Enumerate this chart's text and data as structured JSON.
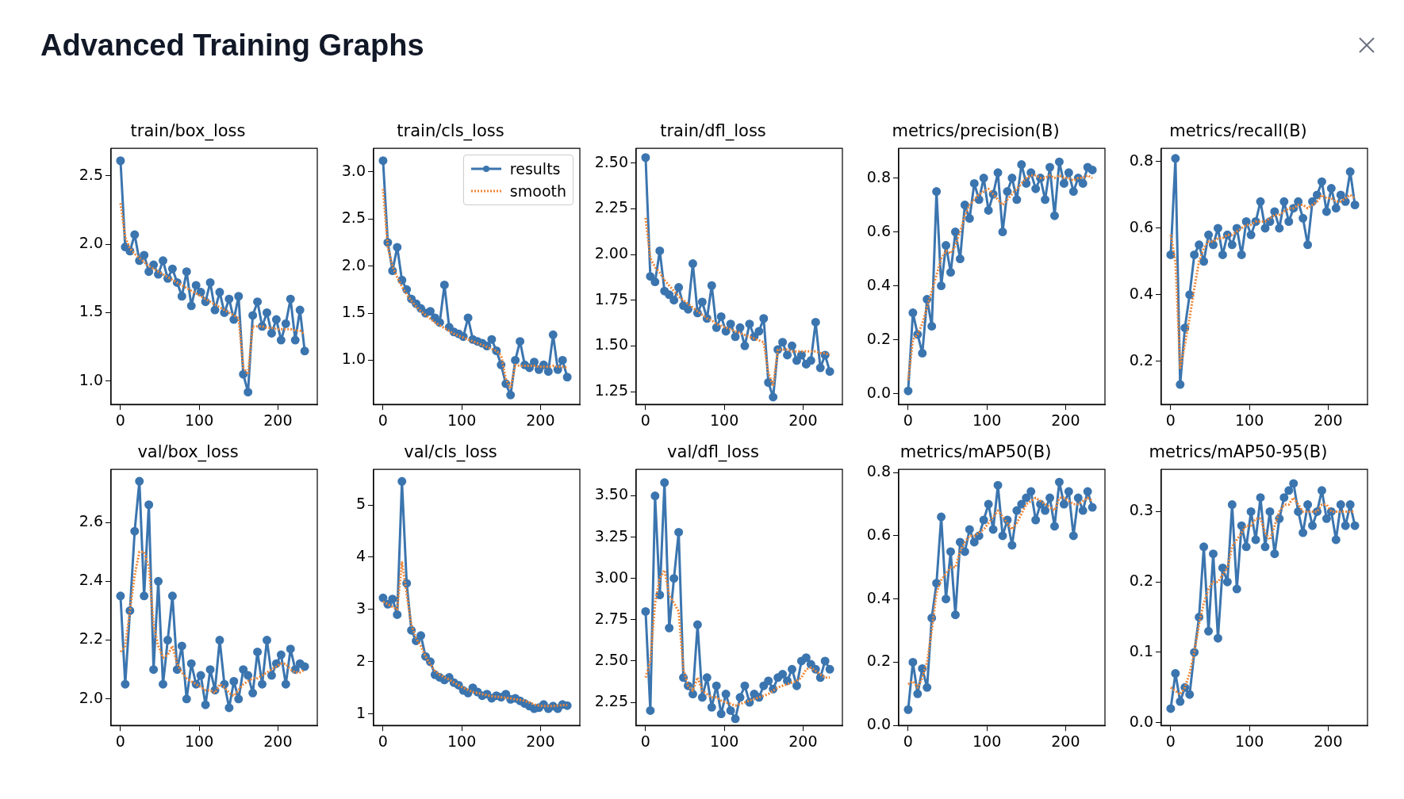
{
  "chart_data": [
    {
      "type": "line",
      "title": "train/box_loss",
      "annotations": [
        "Advanced Training Graphs"
      ],
      "legend": false,
      "x": [
        0,
        6,
        12,
        18,
        24,
        30,
        36,
        42,
        48,
        54,
        60,
        66,
        72,
        78,
        84,
        90,
        96,
        102,
        108,
        114,
        120,
        126,
        132,
        138,
        144,
        150,
        156,
        162,
        168,
        174,
        180,
        186,
        192,
        198,
        204,
        210,
        216,
        222,
        228,
        234
      ],
      "xlim": [
        -12,
        250
      ],
      "xticks": [
        0,
        100,
        200
      ],
      "ylim": [
        0.83,
        2.7
      ],
      "yticks": [
        {
          "value": 1,
          "label": "1.0"
        },
        1.5,
        {
          "value": 2,
          "label": "2.0"
        },
        2.5
      ],
      "series": [
        {
          "color": "#3b75af",
          "marker": "circle",
          "line_style": "solid",
          "values": [
            2.61,
            1.98,
            1.95,
            2.07,
            1.88,
            1.92,
            1.8,
            1.85,
            1.78,
            1.88,
            1.75,
            1.82,
            1.72,
            1.62,
            1.8,
            1.55,
            1.7,
            1.65,
            1.58,
            1.72,
            1.52,
            1.65,
            1.5,
            1.6,
            1.45,
            1.62,
            1.05,
            0.92,
            1.48,
            1.58,
            1.4,
            1.5,
            1.35,
            1.45,
            1.3,
            1.42,
            1.6,
            1.3,
            1.52,
            1.22
          ]
        },
        {
          "color": "#ef8636",
          "marker": "none",
          "line_style": "dotted",
          "values": [
            2.3,
            2.05,
            1.97,
            1.93,
            1.9,
            1.87,
            1.84,
            1.82,
            1.8,
            1.78,
            1.76,
            1.74,
            1.72,
            1.7,
            1.68,
            1.66,
            1.64,
            1.62,
            1.6,
            1.58,
            1.56,
            1.54,
            1.52,
            1.5,
            1.48,
            1.46,
            1.1,
            1.05,
            1.4,
            1.4,
            1.4,
            1.39,
            1.39,
            1.38,
            1.38,
            1.38,
            1.38,
            1.37,
            1.37,
            1.34
          ]
        }
      ]
    },
    {
      "type": "line",
      "title": "train/cls_loss",
      "legend": "top right",
      "x": [
        0,
        6,
        12,
        18,
        24,
        30,
        36,
        42,
        48,
        54,
        60,
        66,
        72,
        78,
        84,
        90,
        96,
        102,
        108,
        114,
        120,
        126,
        132,
        138,
        144,
        150,
        156,
        162,
        168,
        174,
        180,
        186,
        192,
        198,
        204,
        210,
        216,
        222,
        228,
        234
      ],
      "xlim": [
        -12,
        250
      ],
      "xticks": [
        0,
        100,
        200
      ],
      "ylim": [
        0.53,
        3.25
      ],
      "yticks": [
        {
          "value": 1,
          "label": "1.0"
        },
        1.5,
        {
          "value": 2,
          "label": "2.0"
        },
        2.5,
        {
          "value": 3,
          "label": "3.0"
        }
      ],
      "series": [
        {
          "name": "results",
          "color": "#3b75af",
          "marker": "circle",
          "line_style": "solid",
          "values": [
            3.12,
            2.25,
            1.95,
            2.2,
            1.85,
            1.75,
            1.65,
            1.6,
            1.55,
            1.5,
            1.52,
            1.45,
            1.4,
            1.8,
            1.35,
            1.3,
            1.28,
            1.25,
            1.45,
            1.22,
            1.2,
            1.18,
            1.15,
            1.22,
            1.1,
            0.95,
            0.75,
            0.63,
            1.0,
            1.2,
            0.95,
            0.92,
            0.98,
            0.9,
            0.95,
            0.88,
            1.27,
            0.9,
            1.0,
            0.82
          ]
        },
        {
          "name": "smooth",
          "color": "#ef8636",
          "marker": "none",
          "line_style": "dotted",
          "values": [
            2.82,
            2.2,
            2.0,
            1.88,
            1.78,
            1.7,
            1.63,
            1.57,
            1.52,
            1.48,
            1.44,
            1.4,
            1.37,
            1.34,
            1.31,
            1.28,
            1.26,
            1.24,
            1.22,
            1.2,
            1.18,
            1.16,
            1.14,
            1.12,
            1.1,
            1.05,
            0.8,
            0.7,
            0.95,
            0.94,
            0.94,
            0.94,
            0.94,
            0.93,
            0.93,
            0.93,
            0.94,
            0.93,
            0.93,
            0.92
          ]
        }
      ]
    },
    {
      "type": "line",
      "title": "train/dfl_loss",
      "legend": false,
      "x": [
        0,
        6,
        12,
        18,
        24,
        30,
        36,
        42,
        48,
        54,
        60,
        66,
        72,
        78,
        84,
        90,
        96,
        102,
        108,
        114,
        120,
        126,
        132,
        138,
        144,
        150,
        156,
        162,
        168,
        174,
        180,
        186,
        192,
        198,
        204,
        210,
        216,
        222,
        228,
        234
      ],
      "xlim": [
        -12,
        250
      ],
      "xticks": [
        0,
        100,
        200
      ],
      "ylim": [
        1.18,
        2.58
      ],
      "yticks": [
        1.25,
        {
          "value": 1.5,
          "label": "1.50"
        },
        1.75,
        {
          "value": 2,
          "label": "2.00"
        },
        2.25,
        {
          "value": 2.5,
          "label": "2.50"
        }
      ],
      "series": [
        {
          "color": "#3b75af",
          "marker": "circle",
          "line_style": "solid",
          "values": [
            2.53,
            1.88,
            1.85,
            2.02,
            1.8,
            1.78,
            1.75,
            1.82,
            1.72,
            1.7,
            1.95,
            1.68,
            1.74,
            1.65,
            1.83,
            1.6,
            1.66,
            1.58,
            1.62,
            1.55,
            1.6,
            1.5,
            1.62,
            1.55,
            1.58,
            1.65,
            1.3,
            1.22,
            1.48,
            1.52,
            1.45,
            1.5,
            1.42,
            1.45,
            1.4,
            1.42,
            1.63,
            1.38,
            1.45,
            1.36
          ]
        },
        {
          "color": "#ef8636",
          "marker": "none",
          "line_style": "dotted",
          "values": [
            2.2,
            1.98,
            1.93,
            1.9,
            1.86,
            1.83,
            1.8,
            1.77,
            1.75,
            1.73,
            1.71,
            1.69,
            1.67,
            1.65,
            1.64,
            1.62,
            1.61,
            1.6,
            1.59,
            1.58,
            1.57,
            1.56,
            1.55,
            1.54,
            1.53,
            1.52,
            1.35,
            1.28,
            1.48,
            1.48,
            1.48,
            1.47,
            1.47,
            1.47,
            1.47,
            1.47,
            1.47,
            1.46,
            1.46,
            1.45
          ]
        }
      ]
    },
    {
      "type": "line",
      "title": "metrics/precision(B)",
      "legend": false,
      "x": [
        0,
        6,
        12,
        18,
        24,
        30,
        36,
        42,
        48,
        54,
        60,
        66,
        72,
        78,
        84,
        90,
        96,
        102,
        108,
        114,
        120,
        126,
        132,
        138,
        144,
        150,
        156,
        162,
        168,
        174,
        180,
        186,
        192,
        198,
        204,
        210,
        216,
        222,
        228,
        234
      ],
      "xlim": [
        -12,
        250
      ],
      "xticks": [
        0,
        100,
        200
      ],
      "ylim": [
        -0.04,
        0.91
      ],
      "yticks": [
        {
          "value": 0,
          "label": "0.0"
        },
        0.2,
        0.4,
        0.6,
        0.8
      ],
      "series": [
        {
          "color": "#3b75af",
          "marker": "circle",
          "line_style": "solid",
          "values": [
            0.01,
            0.3,
            0.22,
            0.15,
            0.35,
            0.25,
            0.75,
            0.4,
            0.55,
            0.45,
            0.6,
            0.5,
            0.7,
            0.65,
            0.78,
            0.72,
            0.8,
            0.68,
            0.74,
            0.82,
            0.6,
            0.75,
            0.8,
            0.72,
            0.85,
            0.78,
            0.82,
            0.76,
            0.8,
            0.72,
            0.84,
            0.66,
            0.86,
            0.78,
            0.82,
            0.75,
            0.8,
            0.78,
            0.84,
            0.83
          ]
        },
        {
          "color": "#ef8636",
          "marker": "none",
          "line_style": "dotted",
          "values": [
            0.05,
            0.2,
            0.22,
            0.26,
            0.32,
            0.38,
            0.44,
            0.5,
            0.53,
            0.52,
            0.55,
            0.6,
            0.66,
            0.7,
            0.72,
            0.74,
            0.75,
            0.76,
            0.74,
            0.72,
            0.7,
            0.72,
            0.74,
            0.76,
            0.78,
            0.8,
            0.81,
            0.81,
            0.8,
            0.8,
            0.81,
            0.8,
            0.81,
            0.8,
            0.8,
            0.79,
            0.8,
            0.8,
            0.81,
            0.8
          ]
        }
      ]
    },
    {
      "type": "line",
      "title": "metrics/recall(B)",
      "legend": false,
      "x": [
        0,
        6,
        12,
        18,
        24,
        30,
        36,
        42,
        48,
        54,
        60,
        66,
        72,
        78,
        84,
        90,
        96,
        102,
        108,
        114,
        120,
        126,
        132,
        138,
        144,
        150,
        156,
        162,
        168,
        174,
        180,
        186,
        192,
        198,
        204,
        210,
        216,
        222,
        228,
        234
      ],
      "xlim": [
        -12,
        250
      ],
      "xticks": [
        0,
        100,
        200
      ],
      "ylim": [
        0.07,
        0.84
      ],
      "yticks": [
        0.2,
        0.4,
        0.6,
        0.8
      ],
      "series": [
        {
          "color": "#3b75af",
          "marker": "circle",
          "line_style": "solid",
          "values": [
            0.52,
            0.81,
            0.13,
            0.3,
            0.4,
            0.52,
            0.55,
            0.5,
            0.58,
            0.55,
            0.6,
            0.52,
            0.58,
            0.55,
            0.6,
            0.52,
            0.62,
            0.58,
            0.62,
            0.68,
            0.6,
            0.62,
            0.65,
            0.6,
            0.68,
            0.62,
            0.66,
            0.68,
            0.63,
            0.55,
            0.68,
            0.7,
            0.74,
            0.65,
            0.72,
            0.66,
            0.7,
            0.68,
            0.77,
            0.67
          ]
        },
        {
          "color": "#ef8636",
          "marker": "none",
          "line_style": "dotted",
          "values": [
            0.58,
            0.5,
            0.18,
            0.25,
            0.33,
            0.42,
            0.5,
            0.54,
            0.56,
            0.56,
            0.57,
            0.57,
            0.58,
            0.58,
            0.59,
            0.6,
            0.61,
            0.61,
            0.62,
            0.62,
            0.62,
            0.63,
            0.64,
            0.64,
            0.65,
            0.66,
            0.66,
            0.67,
            0.67,
            0.66,
            0.67,
            0.68,
            0.7,
            0.69,
            0.69,
            0.68,
            0.68,
            0.69,
            0.7,
            0.69
          ]
        }
      ]
    },
    {
      "type": "line",
      "title": "val/box_loss",
      "legend": false,
      "x": [
        0,
        6,
        12,
        18,
        24,
        30,
        36,
        42,
        48,
        54,
        60,
        66,
        72,
        78,
        84,
        90,
        96,
        102,
        108,
        114,
        120,
        126,
        132,
        138,
        144,
        150,
        156,
        162,
        168,
        174,
        180,
        186,
        192,
        198,
        204,
        210,
        216,
        222,
        228,
        234
      ],
      "xlim": [
        -12,
        250
      ],
      "xticks": [
        0,
        100,
        200
      ],
      "ylim": [
        1.91,
        2.78
      ],
      "yticks": [
        {
          "value": 2,
          "label": "2.0"
        },
        2.2,
        2.4,
        2.6
      ],
      "series": [
        {
          "color": "#3b75af",
          "marker": "circle",
          "line_style": "solid",
          "values": [
            2.35,
            2.05,
            2.3,
            2.57,
            2.74,
            2.35,
            2.66,
            2.1,
            2.4,
            2.05,
            2.2,
            2.35,
            2.1,
            2.18,
            2.0,
            2.12,
            2.05,
            2.08,
            1.98,
            2.1,
            2.03,
            2.2,
            2.05,
            1.97,
            2.06,
            2.0,
            2.1,
            2.08,
            2.02,
            2.16,
            2.05,
            2.2,
            2.08,
            2.12,
            2.15,
            2.05,
            2.17,
            2.1,
            2.12,
            2.11
          ]
        },
        {
          "color": "#ef8636",
          "marker": "none",
          "line_style": "dotted",
          "values": [
            2.16,
            2.18,
            2.3,
            2.42,
            2.5,
            2.5,
            2.45,
            2.25,
            2.18,
            2.14,
            2.15,
            2.18,
            2.12,
            2.09,
            2.07,
            2.06,
            2.05,
            2.04,
            2.03,
            2.03,
            2.02,
            2.05,
            2.04,
            2.02,
            2.01,
            2.03,
            2.05,
            2.06,
            2.07,
            2.07,
            2.08,
            2.09,
            2.1,
            2.11,
            2.12,
            2.12,
            2.1,
            2.09,
            2.09,
            2.1
          ]
        }
      ]
    },
    {
      "type": "line",
      "title": "val/cls_loss",
      "legend": false,
      "x": [
        0,
        6,
        12,
        18,
        24,
        30,
        36,
        42,
        48,
        54,
        60,
        66,
        72,
        78,
        84,
        90,
        96,
        102,
        108,
        114,
        120,
        126,
        132,
        138,
        144,
        150,
        156,
        162,
        168,
        174,
        180,
        186,
        192,
        198,
        204,
        210,
        216,
        222,
        228,
        234
      ],
      "xlim": [
        -12,
        250
      ],
      "xticks": [
        0,
        100,
        200
      ],
      "ylim": [
        0.78,
        5.68
      ],
      "yticks": [
        1,
        2,
        3,
        4,
        5
      ],
      "series": [
        {
          "color": "#3b75af",
          "marker": "circle",
          "line_style": "solid",
          "values": [
            3.22,
            3.1,
            3.2,
            2.9,
            5.45,
            3.5,
            2.6,
            2.4,
            2.5,
            2.1,
            2.0,
            1.75,
            1.7,
            1.65,
            1.7,
            1.6,
            1.55,
            1.45,
            1.4,
            1.5,
            1.42,
            1.35,
            1.38,
            1.3,
            1.35,
            1.32,
            1.38,
            1.28,
            1.3,
            1.25,
            1.2,
            1.15,
            1.1,
            1.12,
            1.18,
            1.1,
            1.15,
            1.1,
            1.18,
            1.16
          ]
        },
        {
          "color": "#ef8636",
          "marker": "none",
          "line_style": "dotted",
          "values": [
            3.15,
            3.1,
            3.05,
            3.0,
            3.9,
            3.3,
            2.7,
            2.45,
            2.3,
            2.1,
            1.95,
            1.82,
            1.75,
            1.7,
            1.66,
            1.6,
            1.55,
            1.5,
            1.46,
            1.42,
            1.4,
            1.38,
            1.36,
            1.34,
            1.33,
            1.32,
            1.31,
            1.3,
            1.28,
            1.27,
            1.25,
            1.22,
            1.18,
            1.16,
            1.15,
            1.15,
            1.15,
            1.16,
            1.17,
            1.17
          ]
        }
      ]
    },
    {
      "type": "line",
      "title": "val/dfl_loss",
      "legend": false,
      "x": [
        0,
        6,
        12,
        18,
        24,
        30,
        36,
        42,
        48,
        54,
        60,
        66,
        72,
        78,
        84,
        90,
        96,
        102,
        108,
        114,
        120,
        126,
        132,
        138,
        144,
        150,
        156,
        162,
        168,
        174,
        180,
        186,
        192,
        198,
        204,
        210,
        216,
        222,
        228,
        234
      ],
      "xlim": [
        -12,
        250
      ],
      "xticks": [
        0,
        100,
        200
      ],
      "ylim": [
        2.11,
        3.66
      ],
      "yticks": [
        2.25,
        {
          "value": 2.5,
          "label": "2.50"
        },
        2.75,
        {
          "value": 3,
          "label": "3.00"
        },
        3.25,
        {
          "value": 3.5,
          "label": "3.50"
        }
      ],
      "series": [
        {
          "color": "#3b75af",
          "marker": "circle",
          "line_style": "solid",
          "values": [
            2.8,
            2.2,
            3.5,
            2.9,
            3.58,
            2.7,
            3.0,
            3.28,
            2.4,
            2.35,
            2.3,
            2.72,
            2.28,
            2.4,
            2.22,
            2.35,
            2.18,
            2.3,
            2.2,
            2.15,
            2.28,
            2.35,
            2.25,
            2.3,
            2.28,
            2.35,
            2.38,
            2.33,
            2.4,
            2.42,
            2.38,
            2.45,
            2.35,
            2.5,
            2.52,
            2.48,
            2.45,
            2.4,
            2.5,
            2.45
          ]
        },
        {
          "color": "#ef8636",
          "marker": "none",
          "line_style": "dotted",
          "values": [
            2.4,
            2.5,
            2.85,
            3.0,
            3.05,
            2.9,
            2.85,
            2.8,
            2.45,
            2.35,
            2.32,
            2.4,
            2.32,
            2.3,
            2.28,
            2.28,
            2.26,
            2.25,
            2.24,
            2.23,
            2.24,
            2.25,
            2.26,
            2.27,
            2.28,
            2.29,
            2.3,
            2.32,
            2.34,
            2.35,
            2.36,
            2.37,
            2.38,
            2.4,
            2.45,
            2.46,
            2.44,
            2.42,
            2.4,
            2.4
          ]
        }
      ]
    },
    {
      "type": "line",
      "title": "metrics/mAP50(B)",
      "legend": false,
      "x": [
        0,
        6,
        12,
        18,
        24,
        30,
        36,
        42,
        48,
        54,
        60,
        66,
        72,
        78,
        84,
        90,
        96,
        102,
        108,
        114,
        120,
        126,
        132,
        138,
        144,
        150,
        156,
        162,
        168,
        174,
        180,
        186,
        192,
        198,
        204,
        210,
        216,
        222,
        228,
        234
      ],
      "xlim": [
        -12,
        250
      ],
      "xticks": [
        0,
        100,
        200
      ],
      "ylim": [
        0,
        0.81
      ],
      "yticks": [
        {
          "value": 0,
          "label": "0.0"
        },
        0.2,
        0.4,
        0.6,
        0.8
      ],
      "series": [
        {
          "color": "#3b75af",
          "marker": "circle",
          "line_style": "solid",
          "values": [
            0.05,
            0.2,
            0.1,
            0.18,
            0.12,
            0.34,
            0.45,
            0.66,
            0.4,
            0.55,
            0.35,
            0.58,
            0.55,
            0.62,
            0.58,
            0.6,
            0.65,
            0.7,
            0.62,
            0.76,
            0.6,
            0.65,
            0.57,
            0.68,
            0.7,
            0.72,
            0.74,
            0.65,
            0.7,
            0.68,
            0.72,
            0.63,
            0.77,
            0.7,
            0.74,
            0.6,
            0.72,
            0.68,
            0.74,
            0.69
          ]
        },
        {
          "color": "#ef8636",
          "marker": "none",
          "line_style": "dotted",
          "values": [
            0.13,
            0.14,
            0.12,
            0.15,
            0.2,
            0.3,
            0.42,
            0.46,
            0.48,
            0.5,
            0.5,
            0.55,
            0.58,
            0.6,
            0.6,
            0.61,
            0.62,
            0.64,
            0.66,
            0.68,
            0.66,
            0.64,
            0.62,
            0.64,
            0.67,
            0.7,
            0.71,
            0.72,
            0.71,
            0.7,
            0.69,
            0.68,
            0.72,
            0.72,
            0.71,
            0.7,
            0.7,
            0.71,
            0.72,
            0.71
          ]
        }
      ]
    },
    {
      "type": "line",
      "title": "metrics/mAP50-95(B)",
      "legend": false,
      "x": [
        0,
        6,
        12,
        18,
        24,
        30,
        36,
        42,
        48,
        54,
        60,
        66,
        72,
        78,
        84,
        90,
        96,
        102,
        108,
        114,
        120,
        126,
        132,
        138,
        144,
        150,
        156,
        162,
        168,
        174,
        180,
        186,
        192,
        198,
        204,
        210,
        216,
        222,
        228,
        234
      ],
      "xlim": [
        -12,
        250
      ],
      "xticks": [
        0,
        100,
        200
      ],
      "ylim": [
        -0.004,
        0.36
      ],
      "yticks": [
        {
          "value": 0,
          "label": "0.0"
        },
        0.1,
        0.2,
        0.3
      ],
      "series": [
        {
          "color": "#3b75af",
          "marker": "circle",
          "line_style": "solid",
          "values": [
            0.02,
            0.07,
            0.03,
            0.05,
            0.04,
            0.1,
            0.15,
            0.25,
            0.13,
            0.24,
            0.12,
            0.22,
            0.2,
            0.31,
            0.19,
            0.28,
            0.25,
            0.3,
            0.26,
            0.32,
            0.25,
            0.3,
            0.24,
            0.29,
            0.32,
            0.33,
            0.34,
            0.3,
            0.27,
            0.31,
            0.28,
            0.3,
            0.33,
            0.29,
            0.3,
            0.26,
            0.31,
            0.28,
            0.31,
            0.28
          ]
        },
        {
          "color": "#ef8636",
          "marker": "none",
          "line_style": "dotted",
          "values": [
            0.05,
            0.045,
            0.04,
            0.05,
            0.07,
            0.1,
            0.14,
            0.17,
            0.19,
            0.2,
            0.2,
            0.21,
            0.22,
            0.25,
            0.26,
            0.27,
            0.28,
            0.28,
            0.29,
            0.29,
            0.27,
            0.26,
            0.28,
            0.3,
            0.31,
            0.31,
            0.32,
            0.31,
            0.3,
            0.3,
            0.3,
            0.3,
            0.31,
            0.31,
            0.3,
            0.3,
            0.3,
            0.3,
            0.3,
            0.3
          ]
        }
      ]
    }
  ]
}
